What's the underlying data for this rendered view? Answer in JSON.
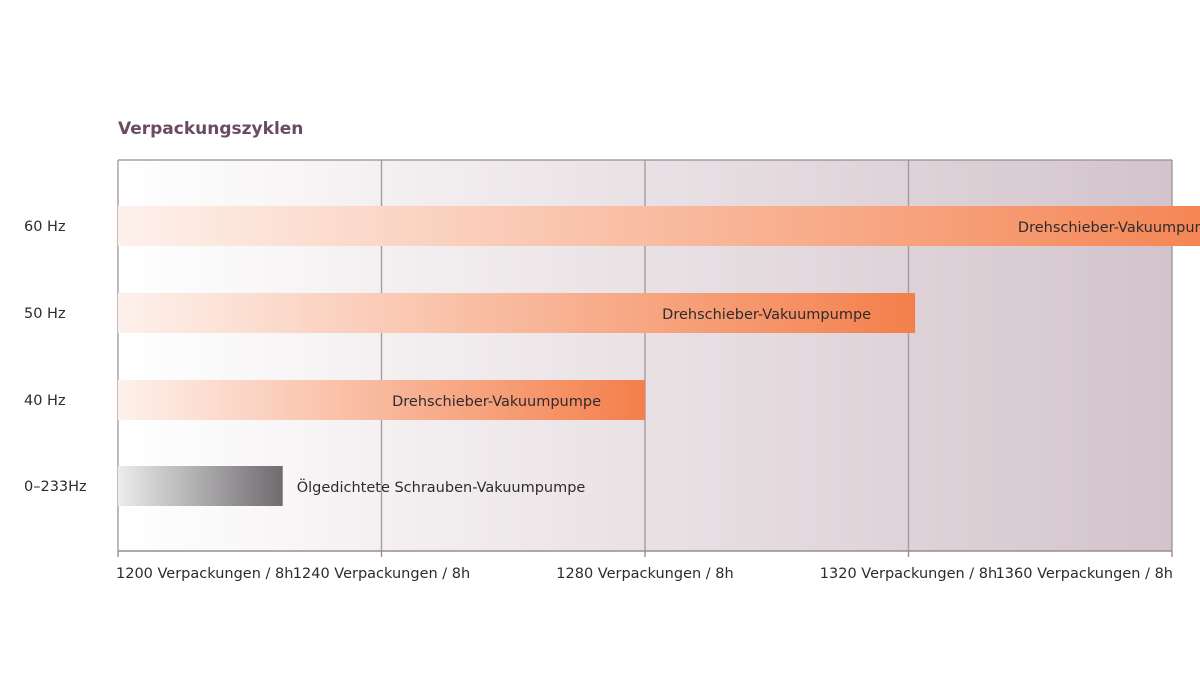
{
  "chart_data": {
    "type": "bar",
    "orientation": "horizontal",
    "title": "Verpackungszyklen",
    "xlabel": "",
    "ylabel": "",
    "categories": [
      "60 Hz",
      "50 Hz",
      "40 Hz",
      "0–233Hz"
    ],
    "values": [
      1375,
      1321,
      1280,
      1225
    ],
    "bar_labels": [
      "Drehschieber-Vakuumpumpe",
      "Drehschieber-Vakuumpumpe",
      "Drehschieber-Vakuumpumpe",
      "Ölgedichtete Schrauben-Vakuumpumpe"
    ],
    "bar_colors": [
      "#f47f4b",
      "#f47f4b",
      "#f47f4b",
      "#6e6b6e"
    ],
    "bar_label_position": [
      "inside-end",
      "inside-end",
      "inside-end",
      "outside-end"
    ],
    "xlim": [
      1200,
      1360
    ],
    "xticks": [
      1200,
      1240,
      1280,
      1320,
      1360
    ],
    "xtick_labels": [
      "1200 Verpackungen / 8h",
      "1240 Verpackungen / 8h",
      "1280 Verpackungen / 8h",
      "1320 Verpackungen / 8h",
      "1360 Verpackungen / 8h"
    ],
    "grid": true,
    "legend": "none"
  },
  "colors": {
    "title": "#6b4a64",
    "axis": "#9a8a96",
    "grid": "#a89aa4",
    "plot_bg_start": "#ffffff",
    "plot_bg_end": "#d3c4cb",
    "text": "#2e2a2e",
    "bar_fade": "#fdf1ec",
    "gray_fade": "#ececec"
  }
}
